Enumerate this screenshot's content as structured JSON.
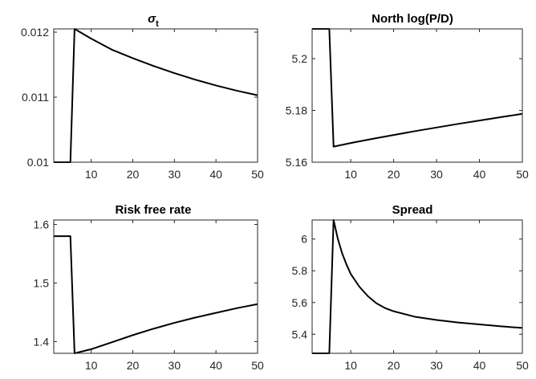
{
  "chart_data": [
    {
      "type": "line",
      "title": "σ",
      "title_subscript": "t",
      "xlim": [
        1,
        50
      ],
      "ylim": [
        0.01,
        0.01205
      ],
      "xticks": [
        10,
        20,
        30,
        40,
        50
      ],
      "xtick_labels": [
        "10",
        "20",
        "30",
        "40",
        "50"
      ],
      "yticks": [
        0.01,
        0.011,
        0.012
      ],
      "ytick_labels": [
        "0.01",
        "0.011",
        "0.012"
      ],
      "grid": false,
      "line_color": "#000000",
      "series": [
        {
          "x": [
            1,
            5,
            6,
            10,
            15,
            20,
            25,
            30,
            35,
            40,
            45,
            50
          ],
          "y": [
            0.01,
            0.01,
            0.01205,
            0.0119,
            0.01173,
            0.0116,
            0.01148,
            0.01137,
            0.01127,
            0.01118,
            0.0111,
            0.01103
          ]
        }
      ]
    },
    {
      "type": "line",
      "title": "North log(P/D)",
      "xlim": [
        1,
        50
      ],
      "ylim": [
        5.16,
        5.2115
      ],
      "xticks": [
        10,
        20,
        30,
        40,
        50
      ],
      "xtick_labels": [
        "10",
        "20",
        "30",
        "40",
        "50"
      ],
      "yticks": [
        5.16,
        5.18,
        5.2
      ],
      "ytick_labels": [
        "5.16",
        "5.18",
        "5.2"
      ],
      "grid": false,
      "line_color": "#000000",
      "series": [
        {
          "x": [
            1,
            5,
            6,
            10,
            15,
            20,
            25,
            30,
            35,
            40,
            45,
            50
          ],
          "y": [
            5.2115,
            5.2115,
            5.166,
            5.1674,
            5.169,
            5.1705,
            5.172,
            5.1734,
            5.1748,
            5.1761,
            5.1774,
            5.1787
          ]
        }
      ]
    },
    {
      "type": "line",
      "title": "Risk free rate",
      "xlim": [
        1,
        50
      ],
      "ylim": [
        1.38,
        1.6075
      ],
      "xticks": [
        10,
        20,
        30,
        40,
        50
      ],
      "xtick_labels": [
        "10",
        "20",
        "30",
        "40",
        "50"
      ],
      "yticks": [
        1.4,
        1.5,
        1.6
      ],
      "ytick_labels": [
        "1.4",
        "1.5",
        "1.6"
      ],
      "grid": false,
      "line_color": "#000000",
      "series": [
        {
          "x": [
            1,
            5,
            6,
            10,
            15,
            20,
            25,
            30,
            35,
            40,
            45,
            50
          ],
          "y": [
            1.58,
            1.58,
            1.38,
            1.387,
            1.399,
            1.411,
            1.422,
            1.432,
            1.441,
            1.449,
            1.457,
            1.464
          ]
        }
      ]
    },
    {
      "type": "line",
      "title": "Spread",
      "xlim": [
        1,
        50
      ],
      "ylim": [
        5.28,
        6.12
      ],
      "xticks": [
        10,
        20,
        30,
        40,
        50
      ],
      "xtick_labels": [
        "10",
        "20",
        "30",
        "40",
        "50"
      ],
      "yticks": [
        5.4,
        5.6,
        5.8,
        6.0
      ],
      "ytick_labels": [
        "5.4",
        "5.6",
        "5.8",
        "6"
      ],
      "grid": false,
      "line_color": "#000000",
      "series": [
        {
          "x": [
            1,
            5,
            6,
            7,
            8,
            9,
            10,
            12,
            14,
            16,
            18,
            20,
            25,
            30,
            35,
            40,
            45,
            50
          ],
          "y": [
            5.28,
            5.28,
            6.12,
            6.0,
            5.91,
            5.84,
            5.78,
            5.7,
            5.64,
            5.595,
            5.565,
            5.545,
            5.51,
            5.49,
            5.474,
            5.462,
            5.45,
            5.44
          ]
        }
      ]
    }
  ]
}
